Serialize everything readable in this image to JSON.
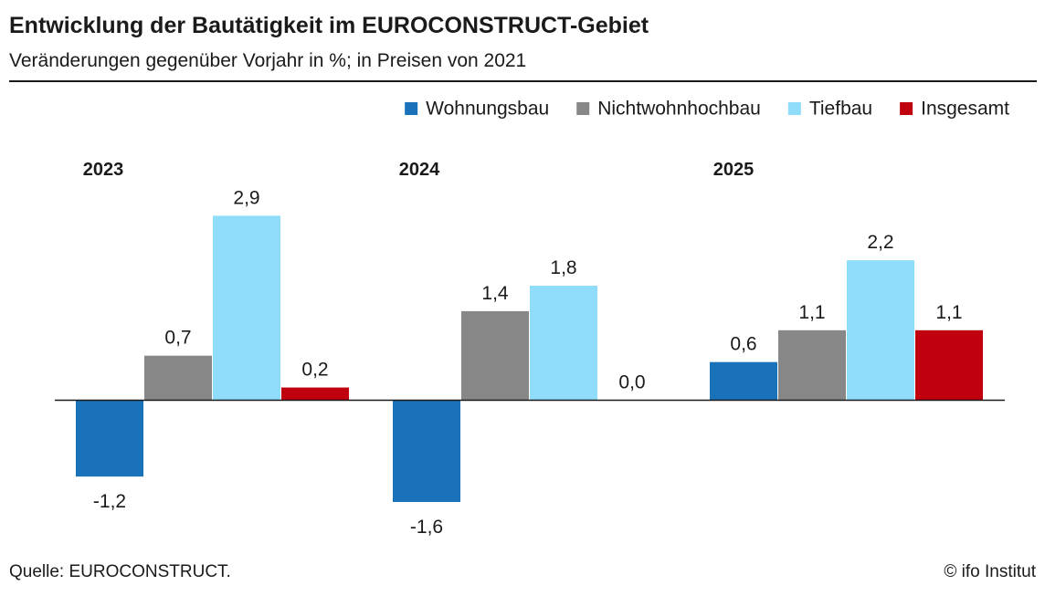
{
  "header": {
    "title": "Entwicklung der Bautätigkeit im EUROCONSTRUCT-Gebiet",
    "subtitle": "Veränderungen gegenüber Vorjahr in %; in Preisen von 2021"
  },
  "footer": {
    "source": "Quelle: EUROCONSTRUCT.",
    "credit": "© ifo Institut"
  },
  "chart_data": {
    "type": "bar",
    "categories": [
      "2023",
      "2024",
      "2025"
    ],
    "series": [
      {
        "name": "Wohnungsbau",
        "color": "#1a72bb",
        "values": [
          -1.2,
          -1.6,
          0.6
        ]
      },
      {
        "name": "Nichtwohnhochbau",
        "color": "#878787",
        "values": [
          0.7,
          1.4,
          1.1
        ]
      },
      {
        "name": "Tiefbau",
        "color": "#8fdcfb",
        "values": [
          2.9,
          1.8,
          2.2
        ]
      },
      {
        "name": "Insgesamt",
        "color": "#c0000f",
        "values": [
          0.2,
          0.0,
          1.1
        ]
      }
    ],
    "value_labels": [
      [
        "-1,2",
        "0,7",
        "2,9",
        "0,2"
      ],
      [
        "-1,6",
        "1,4",
        "1,8",
        "0,0"
      ],
      [
        "0,6",
        "1,1",
        "2,2",
        "1,1"
      ]
    ],
    "ylim": [
      -2.0,
      3.5
    ],
    "legend_position": "top-right",
    "grid": false,
    "xlabel": "",
    "ylabel": ""
  }
}
